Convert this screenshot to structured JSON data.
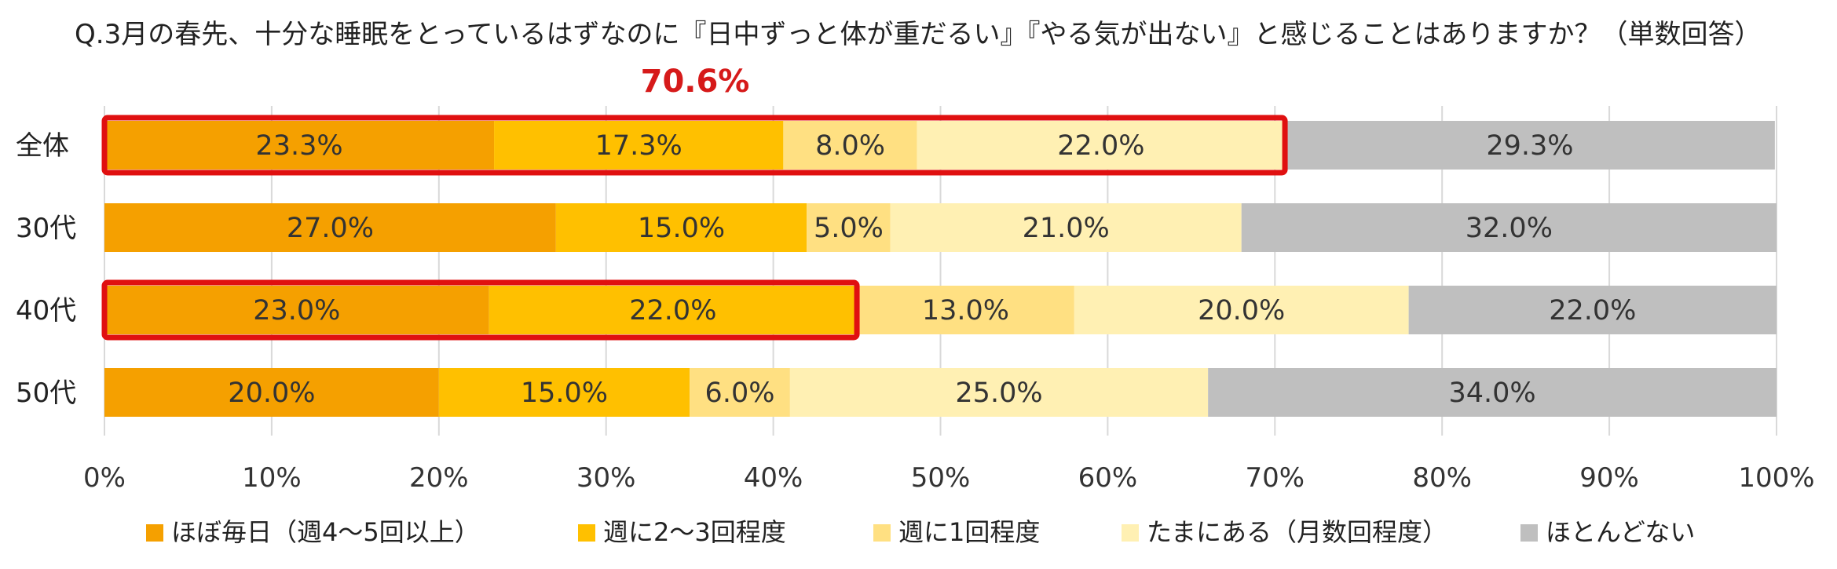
{
  "chart_data": {
    "type": "bar",
    "orientation": "horizontal",
    "stacked": true,
    "title": "Q.3月の春先、十分な睡眠をとっているはずなのに『日中ずっと体が重だるい』『やる気が出ない』と感じることはありますか？（単数回答）",
    "highlight_label": "70.6%",
    "categories": [
      "全体",
      "30代",
      "40代",
      "50代"
    ],
    "series": [
      {
        "name": "ほぼ毎日（週4〜5回以上）",
        "color": "#f5a000",
        "values": [
          23.3,
          27.0,
          23.0,
          20.0
        ]
      },
      {
        "name": "週に2〜3回程度",
        "color": "#ffc000",
        "values": [
          17.3,
          15.0,
          22.0,
          15.0
        ]
      },
      {
        "name": "週に1回程度",
        "color": "#ffe082",
        "values": [
          8.0,
          5.0,
          13.0,
          6.0
        ]
      },
      {
        "name": "たまにある（月数回程度）",
        "color": "#fff0b3",
        "values": [
          22.0,
          21.0,
          20.0,
          25.0
        ]
      },
      {
        "name": "ほとんどない",
        "color": "#bfbfbf",
        "values": [
          29.3,
          32.0,
          22.0,
          34.0
        ]
      }
    ],
    "value_labels": [
      [
        "23.3%",
        "27.0%",
        "23.0%",
        "20.0%"
      ],
      [
        "17.3%",
        "15.0%",
        "22.0%",
        "15.0%"
      ],
      [
        "8.0%",
        "5.0%",
        "13.0%",
        "6.0%"
      ],
      [
        "22.0%",
        "21.0%",
        "20.0%",
        "25.0%"
      ],
      [
        "29.3%",
        "32.0%",
        "22.0%",
        "34.0%"
      ]
    ],
    "x_ticks": [
      "0%",
      "10%",
      "20%",
      "30%",
      "40%",
      "50%",
      "60%",
      "70%",
      "80%",
      "90%",
      "100%"
    ],
    "xlim": [
      0,
      100
    ],
    "grid": true,
    "legend_position": "bottom",
    "highlight_color": "#e01010",
    "highlight_boxes": [
      {
        "category_index": 0,
        "from_value": 0,
        "to_value": 70.6
      },
      {
        "category_index": 2,
        "from_value": 0,
        "to_value": 45.0
      }
    ]
  }
}
